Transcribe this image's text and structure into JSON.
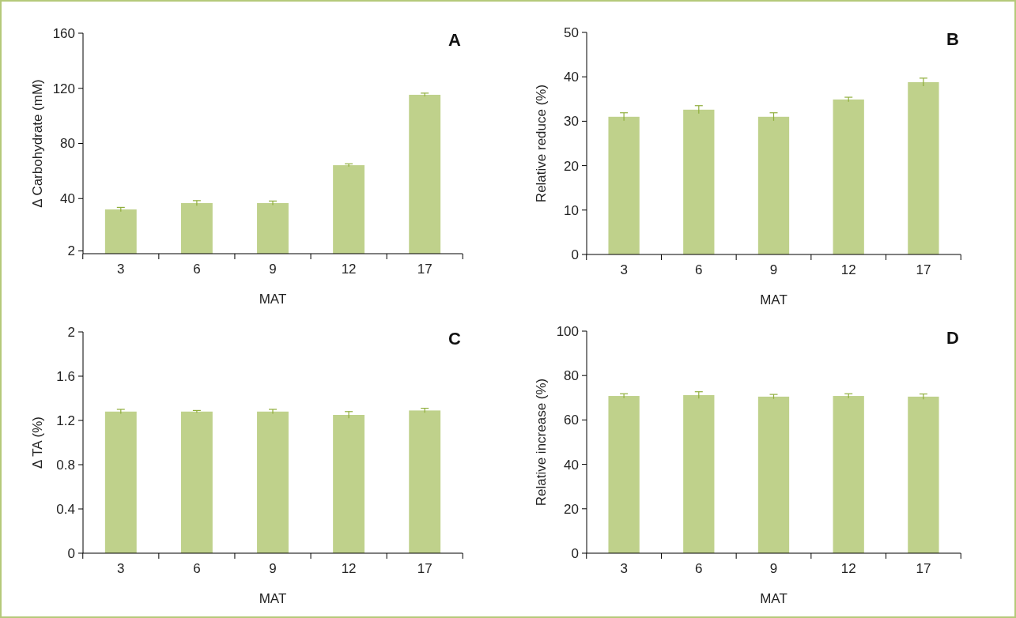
{
  "chart_data": [
    {
      "type": "bar",
      "title": "A",
      "xlabel": "MAT",
      "ylabel": "Δ Carbohydrate (mM)",
      "categories": [
        "3",
        "6",
        "9",
        "12",
        "17"
      ],
      "series": [
        {
          "color": "#bfd18b",
          "values": [
            32.1,
            36.7,
            36.7,
            64.2,
            115.3
          ],
          "errors": [
            1.5,
            1.8,
            1.5,
            1,
            1.2
          ]
        }
      ],
      "ylim": [
        0,
        160
      ],
      "yticks": [
        2,
        40,
        80,
        120,
        160
      ],
      "grid": false
    },
    {
      "type": "bar",
      "title": "B",
      "xlabel": "MAT",
      "ylabel": "Relative reduce (%)",
      "categories": [
        "3",
        "6",
        "9",
        "12",
        "17"
      ],
      "series": [
        {
          "color": "#bfd18b",
          "values": [
            31,
            32.6,
            31,
            34.9,
            38.8
          ],
          "errors": [
            0.9,
            0.9,
            0.9,
            0.5,
            0.9
          ]
        }
      ],
      "ylim": [
        0,
        50
      ],
      "yticks": [
        0,
        10,
        20,
        30,
        40,
        50
      ],
      "grid": false
    },
    {
      "type": "bar",
      "title": "C",
      "xlabel": "MAT",
      "ylabel": "Δ TA (%)",
      "categories": [
        "3",
        "6",
        "9",
        "12",
        "17"
      ],
      "series": [
        {
          "color": "#bfd18b",
          "values": [
            1.28,
            1.28,
            1.28,
            1.25,
            1.29
          ],
          "errors": [
            0.02,
            0.01,
            0.02,
            0.03,
            0.02
          ]
        }
      ],
      "ylim": [
        0,
        2
      ],
      "yticks": [
        0,
        0.4,
        0.8,
        1.2,
        1.6,
        2
      ],
      "grid": false
    },
    {
      "type": "bar",
      "title": "D",
      "xlabel": "MAT",
      "ylabel": "Relative increase (%)",
      "categories": [
        "3",
        "6",
        "9",
        "12",
        "17"
      ],
      "series": [
        {
          "color": "#bfd18b",
          "values": [
            70.8,
            71.2,
            70.5,
            70.8,
            70.5
          ],
          "errors": [
            1,
            1.5,
            1,
            1,
            1.2
          ]
        }
      ],
      "ylim": [
        0,
        100
      ],
      "yticks": [
        0,
        20,
        40,
        60,
        80,
        100
      ],
      "grid": false
    }
  ]
}
